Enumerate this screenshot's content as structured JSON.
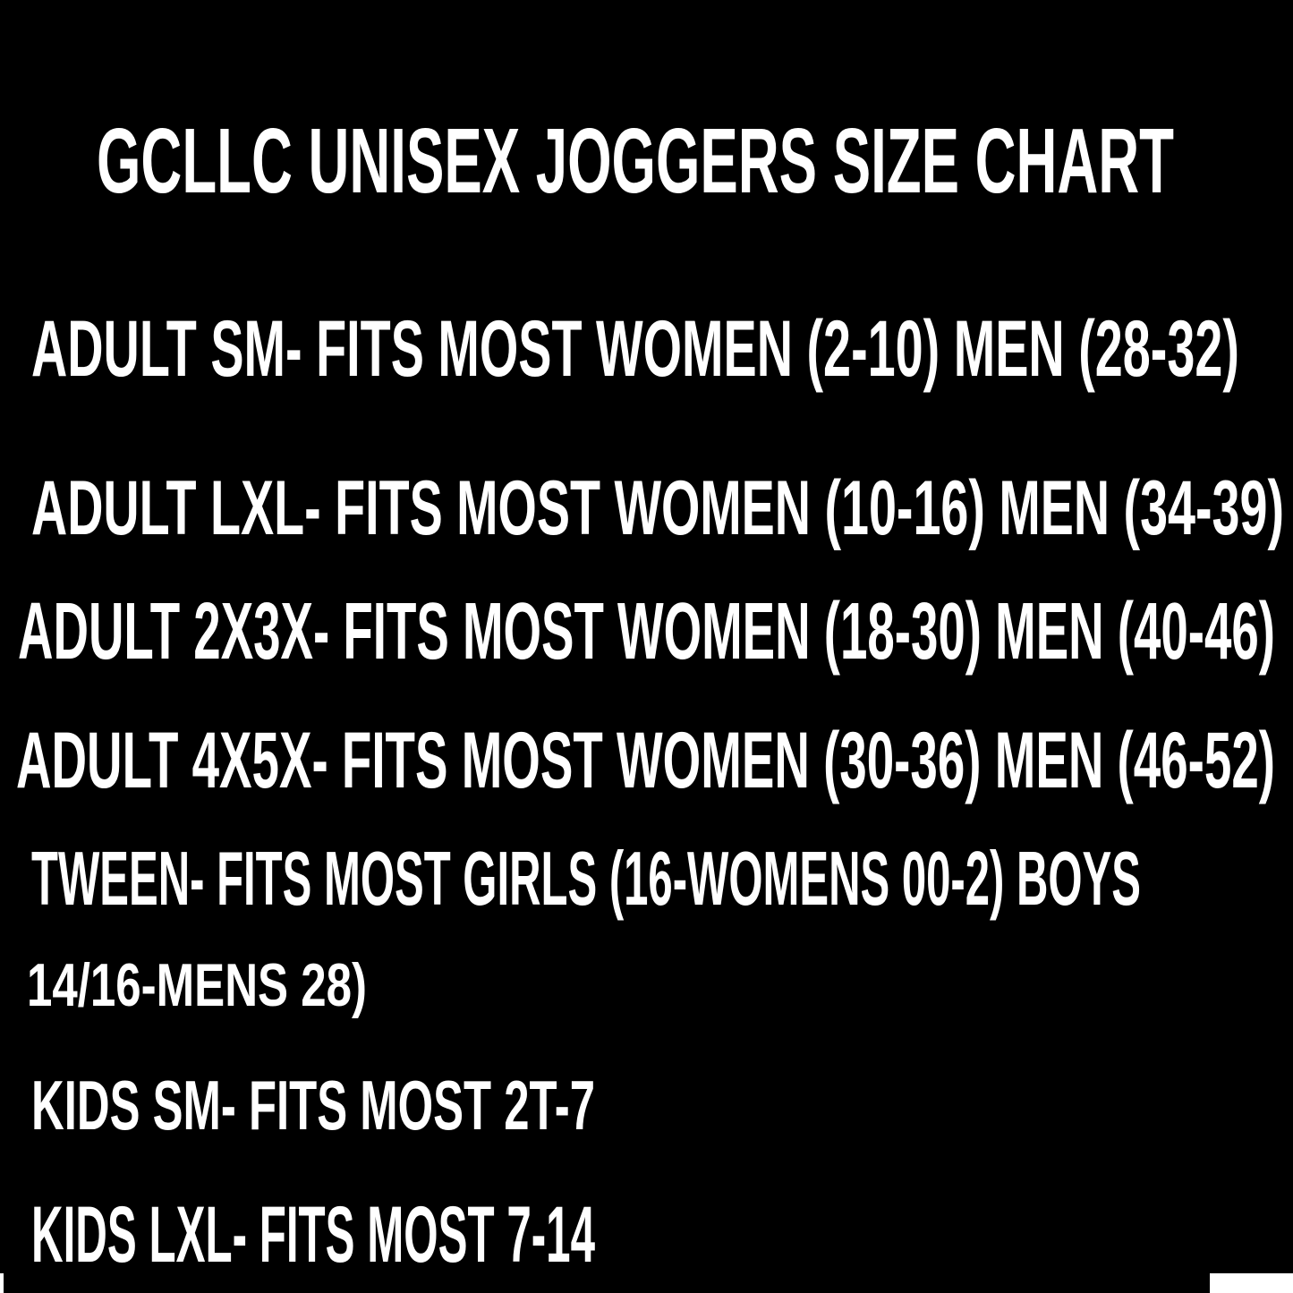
{
  "title": "GCLLC UNISEX JOGGERS SIZE CHART",
  "sizes": [
    "ADULT SM- FITS MOST WOMEN (2-10) MEN (28-32)",
    "ADULT LXL- FITS MOST WOMEN (10-16) MEN (34-39)",
    "ADULT 2X3X- FITS MOST WOMEN (18-30) MEN (40-46)",
    "ADULT 4X5X- FITS MOST WOMEN (30-36) MEN (46-52)",
    "TWEEN- FITS MOST GIRLS (16-WOMENS 00-2) BOYS",
    "14/16-MENS 28)",
    "KIDS SM- FITS MOST 2T-7",
    "KIDS LXL- FITS MOST 7-14"
  ],
  "colors": {
    "background": "#000000",
    "text": "#ffffff"
  }
}
